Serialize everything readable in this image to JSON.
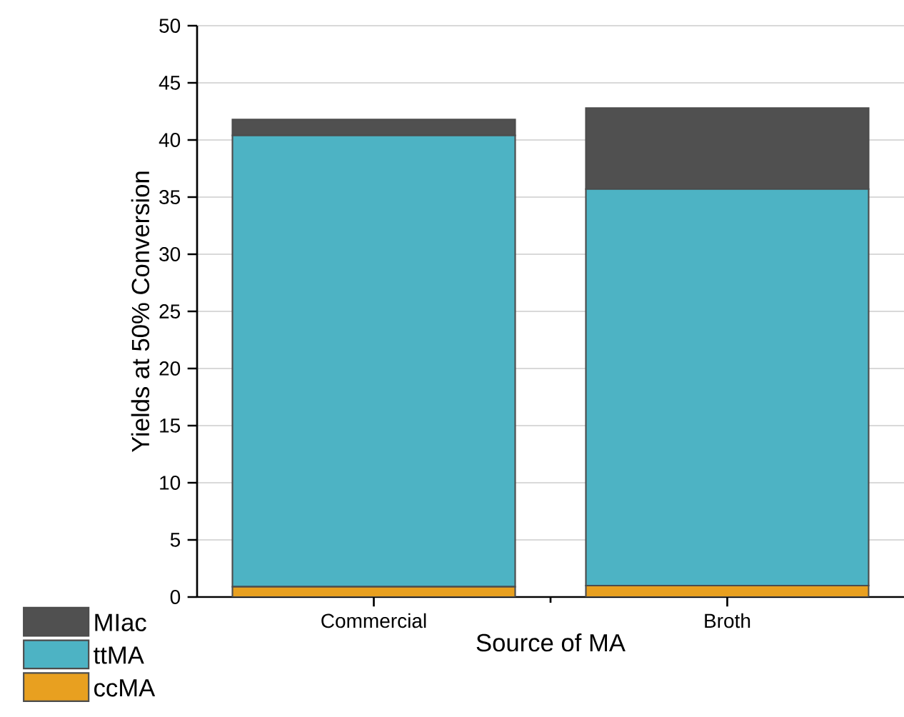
{
  "chart_data": {
    "type": "bar",
    "stacked": true,
    "xlabel": "Source of MA",
    "ylabel": "Yields at 50% Conversion",
    "categories": [
      "Commercial",
      "Broth"
    ],
    "series": [
      {
        "name": "ccMA",
        "color": "#e8a020",
        "values": [
          0.9,
          1.0
        ]
      },
      {
        "name": "ttMA",
        "color": "#4db3c4",
        "values": [
          39.5,
          34.7
        ]
      },
      {
        "name": "MIac",
        "color": "#505050",
        "values": [
          1.4,
          7.1
        ]
      }
    ],
    "ylim": [
      0,
      50
    ],
    "yticks": [
      0,
      5,
      10,
      15,
      20,
      25,
      30,
      35,
      40,
      45,
      50
    ],
    "grid": "y",
    "legend": "bottom left"
  }
}
